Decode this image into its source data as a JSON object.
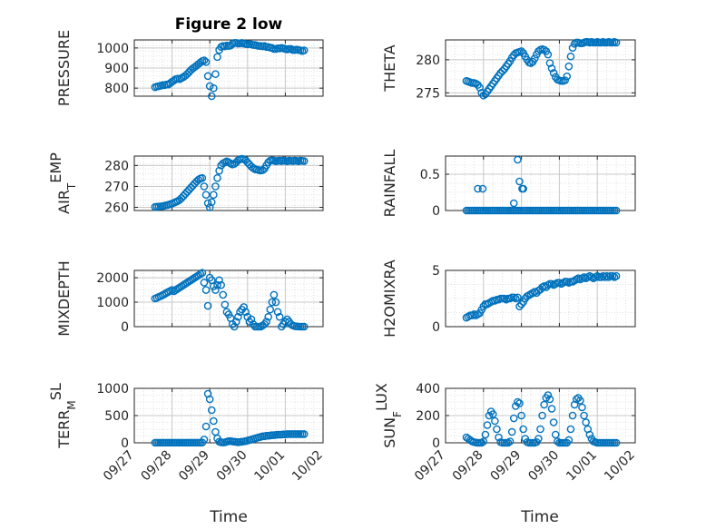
{
  "figure": {
    "title": "Figure 2 low",
    "xlabel": "Time"
  },
  "x_ticks": [
    "09/27",
    "09/28",
    "09/29",
    "09/30",
    "10/01",
    "10/02"
  ],
  "x_range_days": [
    0,
    5
  ],
  "marker_color": "#0072BD",
  "chart_data": [
    {
      "type": "scatter",
      "ylabel": "PRESSURE",
      "ylim": [
        760,
        1040
      ],
      "yticks": [
        800,
        900,
        1000
      ],
      "grid": true,
      "x": [
        0.55,
        0.6,
        0.65,
        0.7,
        0.75,
        0.8,
        0.85,
        0.9,
        0.95,
        1.0,
        1.05,
        1.1,
        1.15,
        1.2,
        1.25,
        1.3,
        1.35,
        1.4,
        1.45,
        1.5,
        1.55,
        1.6,
        1.65,
        1.7,
        1.75,
        1.8,
        1.85,
        1.9,
        1.95,
        2.0,
        2.05,
        2.1,
        2.15,
        2.2,
        2.25,
        2.3,
        2.35,
        2.4,
        2.45,
        2.5,
        2.55,
        2.6,
        2.65,
        2.7,
        2.75,
        2.8,
        2.85,
        2.9,
        2.95,
        3.0,
        3.05,
        3.1,
        3.15,
        3.2,
        3.25,
        3.3,
        3.35,
        3.4,
        3.45,
        3.5,
        3.55,
        3.6,
        3.65,
        3.7,
        3.75,
        3.8,
        3.85,
        3.9,
        3.95,
        4.0,
        4.05,
        4.1,
        4.15,
        4.2,
        4.25,
        4.3,
        4.35,
        4.4,
        4.45,
        4.5
      ],
      "y": [
        805,
        808,
        810,
        812,
        815,
        815,
        818,
        818,
        825,
        832,
        838,
        845,
        847,
        845,
        850,
        855,
        862,
        870,
        880,
        890,
        898,
        905,
        912,
        920,
        928,
        935,
        938,
        930,
        860,
        810,
        760,
        800,
        870,
        955,
        990,
        1005,
        1010,
        1008,
        1012,
        1010,
        1012,
        1020,
        1025,
        1025,
        1022,
        1023,
        1025,
        1022,
        1020,
        1018,
        1020,
        1018,
        1015,
        1015,
        1012,
        1010,
        1010,
        1008,
        1010,
        1005,
        1005,
        1002,
        1000,
        995,
        995,
        998,
        998,
        1000,
        998,
        995,
        993,
        995,
        995,
        990,
        990,
        992,
        990,
        988,
        985,
        988
      ]
    },
    {
      "type": "scatter",
      "ylabel": "THETA",
      "ylim": [
        274.5,
        283
      ],
      "yticks": [
        275,
        280
      ],
      "grid": true,
      "x": [
        0.55,
        0.6,
        0.65,
        0.7,
        0.75,
        0.8,
        0.85,
        0.9,
        0.95,
        1.0,
        1.05,
        1.1,
        1.15,
        1.2,
        1.25,
        1.3,
        1.35,
        1.4,
        1.45,
        1.5,
        1.55,
        1.6,
        1.65,
        1.7,
        1.75,
        1.8,
        1.85,
        1.9,
        1.95,
        2.0,
        2.05,
        2.1,
        2.15,
        2.2,
        2.25,
        2.3,
        2.35,
        2.4,
        2.45,
        2.5,
        2.55,
        2.6,
        2.65,
        2.7,
        2.75,
        2.8,
        2.85,
        2.9,
        2.95,
        3.0,
        3.05,
        3.1,
        3.15,
        3.2,
        3.25,
        3.3,
        3.35,
        3.4,
        3.45,
        3.5,
        3.55,
        3.6,
        3.65,
        3.7,
        3.75,
        3.8,
        3.85,
        3.9,
        3.95,
        4.0,
        4.05,
        4.1,
        4.15,
        4.2,
        4.25,
        4.3,
        4.35,
        4.4,
        4.45,
        4.5
      ],
      "y": [
        276.8,
        276.7,
        276.6,
        276.5,
        276.5,
        276.4,
        276.2,
        275.8,
        275.0,
        274.6,
        274.8,
        275.2,
        275.6,
        276.0,
        276.4,
        276.8,
        277.2,
        277.6,
        278.0,
        278.3,
        278.6,
        279.0,
        279.4,
        279.8,
        280.3,
        280.7,
        281.0,
        281.1,
        281.2,
        281.3,
        281.0,
        280.5,
        280.0,
        279.6,
        279.5,
        279.7,
        280.2,
        280.8,
        281.3,
        281.5,
        281.6,
        281.5,
        281.3,
        280.8,
        279.5,
        278.7,
        278.0,
        277.4,
        277.0,
        276.9,
        276.8,
        276.8,
        276.9,
        277.5,
        279.0,
        280.5,
        281.8,
        282.4,
        282.6,
        282.6,
        282.5,
        282.5,
        282.6,
        282.7,
        282.7,
        282.6,
        282.7,
        282.6,
        282.6,
        282.7,
        282.6,
        282.6,
        282.7,
        282.6,
        282.6,
        282.7,
        282.6,
        282.6,
        282.7,
        282.6
      ]
    },
    {
      "type": "scatter",
      "ylabel": "AIR_TEMP",
      "ylabel_main": "AIR",
      "ylabel_sub": "T",
      "ylabel_rest": "EMP",
      "ylim": [
        258.5,
        284.5
      ],
      "yticks": [
        260,
        270,
        280
      ],
      "grid": true,
      "x": [
        0.55,
        0.6,
        0.65,
        0.7,
        0.75,
        0.8,
        0.85,
        0.9,
        0.95,
        1.0,
        1.05,
        1.1,
        1.15,
        1.2,
        1.25,
        1.3,
        1.35,
        1.4,
        1.45,
        1.5,
        1.55,
        1.6,
        1.65,
        1.7,
        1.75,
        1.8,
        1.85,
        1.9,
        1.95,
        2.0,
        2.05,
        2.1,
        2.15,
        2.2,
        2.25,
        2.3,
        2.35,
        2.4,
        2.45,
        2.5,
        2.55,
        2.6,
        2.65,
        2.7,
        2.75,
        2.8,
        2.85,
        2.9,
        2.95,
        3.0,
        3.05,
        3.1,
        3.15,
        3.2,
        3.25,
        3.3,
        3.35,
        3.4,
        3.45,
        3.5,
        3.55,
        3.6,
        3.65,
        3.7,
        3.75,
        3.8,
        3.85,
        3.9,
        3.95,
        4.0,
        4.05,
        4.1,
        4.15,
        4.2,
        4.25,
        4.3,
        4.35,
        4.4,
        4.45,
        4.5
      ],
      "y": [
        260.2,
        260.3,
        260.4,
        260.5,
        260.6,
        260.8,
        261.0,
        261.2,
        261.5,
        261.8,
        262.2,
        262.6,
        263.0,
        263.6,
        264.4,
        265.4,
        266.4,
        267.4,
        268.4,
        269.4,
        270.4,
        271.4,
        272.4,
        273.2,
        273.8,
        274.0,
        270.0,
        266.0,
        262.0,
        260.0,
        262.5,
        266.0,
        270.0,
        274.0,
        277.5,
        280.0,
        281.0,
        281.5,
        282.0,
        281.5,
        281.0,
        280.5,
        280.8,
        281.5,
        282.5,
        283.0,
        283.2,
        283.0,
        282.5,
        281.5,
        280.5,
        279.5,
        278.8,
        278.2,
        278.0,
        277.8,
        277.6,
        277.8,
        278.5,
        280.0,
        281.5,
        282.3,
        282.5,
        282.3,
        282.0,
        282.2,
        282.3,
        282.1,
        282.4,
        282.2,
        282.0,
        282.3,
        282.2,
        282.1,
        282.3,
        282.2,
        282.0,
        282.3,
        282.2,
        282.1
      ]
    },
    {
      "type": "scatter",
      "ylabel": "RAINFALL",
      "ylim": [
        0,
        0.75
      ],
      "yticks": [
        0,
        0.5
      ],
      "grid": true,
      "x": [
        0.55,
        0.6,
        0.65,
        0.7,
        0.75,
        0.8,
        0.85,
        0.9,
        0.95,
        1.0,
        1.05,
        1.1,
        1.15,
        1.2,
        1.25,
        1.3,
        1.35,
        1.4,
        1.45,
        1.5,
        1.55,
        1.6,
        1.65,
        1.7,
        1.75,
        1.8,
        1.85,
        1.9,
        1.95,
        2.0,
        2.05,
        2.1,
        2.15,
        2.2,
        2.25,
        2.3,
        2.35,
        2.4,
        2.45,
        2.5,
        2.55,
        2.6,
        2.65,
        2.7,
        2.75,
        2.8,
        2.85,
        2.9,
        2.95,
        3.0,
        3.05,
        3.1,
        3.15,
        3.2,
        3.25,
        3.3,
        3.35,
        3.4,
        3.45,
        3.5,
        3.55,
        3.6,
        3.65,
        3.7,
        3.75,
        3.8,
        3.85,
        3.9,
        3.95,
        4.0,
        4.05,
        4.1,
        4.15,
        4.2,
        4.25,
        4.3,
        4.35,
        4.4,
        4.45,
        4.5,
        0.85,
        0.98,
        1.8,
        1.9,
        1.95,
        2.02,
        2.05
      ],
      "y": [
        0,
        0,
        0,
        0,
        0,
        0,
        0,
        0,
        0,
        0,
        0,
        0,
        0,
        0,
        0,
        0,
        0,
        0,
        0,
        0,
        0,
        0,
        0,
        0,
        0,
        0,
        0,
        0,
        0,
        0,
        0,
        0,
        0,
        0,
        0,
        0,
        0,
        0,
        0,
        0,
        0,
        0,
        0,
        0,
        0,
        0,
        0,
        0,
        0,
        0,
        0,
        0,
        0,
        0,
        0,
        0,
        0,
        0,
        0,
        0,
        0,
        0,
        0,
        0,
        0,
        0,
        0,
        0,
        0,
        0,
        0,
        0,
        0,
        0,
        0,
        0,
        0,
        0,
        0,
        0,
        0.3,
        0.3,
        0.1,
        0.7,
        0.4,
        0.3,
        0.3
      ]
    },
    {
      "type": "scatter",
      "ylabel": "MIXDEPTH",
      "ylim": [
        0,
        2300
      ],
      "yticks": [
        0,
        1000,
        2000
      ],
      "grid": true,
      "x": [
        0.55,
        0.6,
        0.65,
        0.7,
        0.75,
        0.8,
        0.85,
        0.9,
        0.95,
        1.0,
        1.05,
        1.1,
        1.15,
        1.2,
        1.25,
        1.3,
        1.35,
        1.4,
        1.45,
        1.5,
        1.55,
        1.6,
        1.65,
        1.7,
        1.75,
        1.8,
        1.85,
        1.9,
        1.95,
        2.0,
        2.05,
        2.1,
        2.15,
        2.2,
        2.25,
        2.3,
        2.35,
        2.4,
        2.45,
        2.5,
        2.55,
        2.6,
        2.65,
        2.7,
        2.75,
        2.8,
        2.85,
        2.9,
        2.95,
        3.0,
        3.05,
        3.1,
        3.15,
        3.2,
        3.25,
        3.3,
        3.35,
        3.4,
        3.45,
        3.5,
        3.55,
        3.6,
        3.65,
        3.7,
        3.75,
        3.8,
        3.85,
        3.9,
        3.95,
        4.0,
        4.05,
        4.1,
        4.15,
        4.2,
        4.25,
        4.3,
        4.35,
        4.4,
        4.45,
        4.5
      ],
      "y": [
        1150,
        1180,
        1220,
        1250,
        1290,
        1330,
        1380,
        1420,
        1460,
        1500,
        1450,
        1500,
        1550,
        1600,
        1650,
        1700,
        1750,
        1800,
        1850,
        1900,
        1950,
        2000,
        2050,
        2100,
        2150,
        2200,
        1800,
        1500,
        850,
        2000,
        1900,
        1650,
        1500,
        1700,
        1900,
        1700,
        1300,
        900,
        600,
        500,
        350,
        100,
        0,
        200,
        400,
        600,
        700,
        800,
        600,
        400,
        200,
        300,
        100,
        0,
        0,
        0,
        0,
        50,
        100,
        200,
        400,
        700,
        1000,
        1300,
        1000,
        600,
        400,
        0,
        100,
        200,
        300,
        200,
        100,
        50,
        20,
        10,
        5,
        0,
        0,
        0
      ]
    },
    {
      "type": "scatter",
      "ylabel": "H2OMIXRA",
      "ylim": [
        0,
        5
      ],
      "yticks": [
        0,
        5
      ],
      "grid": true,
      "x": [
        0.55,
        0.6,
        0.65,
        0.7,
        0.75,
        0.8,
        0.85,
        0.9,
        0.95,
        1.0,
        1.05,
        1.1,
        1.15,
        1.2,
        1.25,
        1.3,
        1.35,
        1.4,
        1.45,
        1.5,
        1.55,
        1.6,
        1.65,
        1.7,
        1.75,
        1.8,
        1.85,
        1.9,
        1.95,
        2.0,
        2.05,
        2.1,
        2.15,
        2.2,
        2.25,
        2.3,
        2.35,
        2.4,
        2.45,
        2.5,
        2.55,
        2.6,
        2.65,
        2.7,
        2.75,
        2.8,
        2.85,
        2.9,
        2.95,
        3.0,
        3.05,
        3.1,
        3.15,
        3.2,
        3.25,
        3.3,
        3.35,
        3.4,
        3.45,
        3.5,
        3.55,
        3.6,
        3.65,
        3.7,
        3.75,
        3.8,
        3.85,
        3.9,
        3.95,
        4.0,
        4.05,
        4.1,
        4.15,
        4.2,
        4.25,
        4.3,
        4.35,
        4.4,
        4.45,
        4.5
      ],
      "y": [
        0.8,
        0.9,
        1.0,
        1.0,
        1.1,
        1.0,
        1.1,
        1.2,
        1.5,
        1.8,
        2.0,
        2.0,
        2.1,
        2.2,
        2.3,
        2.3,
        2.4,
        2.4,
        2.5,
        2.5,
        2.5,
        2.4,
        2.5,
        2.5,
        2.6,
        2.6,
        2.5,
        2.6,
        1.8,
        2.0,
        2.2,
        2.5,
        2.7,
        2.8,
        2.9,
        3.0,
        3.1,
        3.0,
        3.2,
        3.3,
        3.5,
        3.6,
        3.5,
        3.7,
        3.8,
        3.8,
        3.7,
        3.8,
        3.9,
        3.9,
        3.8,
        3.9,
        4.0,
        4.0,
        3.9,
        4.0,
        4.0,
        4.1,
        4.2,
        4.3,
        4.2,
        4.3,
        4.4,
        4.3,
        4.4,
        4.5,
        4.4,
        4.3,
        4.4,
        4.5,
        4.4,
        4.4,
        4.5,
        4.4,
        4.5,
        4.4,
        4.5,
        4.5,
        4.4,
        4.5
      ]
    },
    {
      "type": "scatter",
      "ylabel": "TERR_MSL",
      "ylabel_main": "TERR",
      "ylabel_sub": "M",
      "ylabel_rest": "SL",
      "ylim": [
        0,
        1000
      ],
      "yticks": [
        0,
        500,
        1000
      ],
      "grid": true,
      "x": [
        0.55,
        0.6,
        0.65,
        0.7,
        0.75,
        0.8,
        0.85,
        0.9,
        0.95,
        1.0,
        1.05,
        1.1,
        1.15,
        1.2,
        1.25,
        1.3,
        1.35,
        1.4,
        1.45,
        1.5,
        1.55,
        1.6,
        1.65,
        1.7,
        1.75,
        1.8,
        1.85,
        1.9,
        1.95,
        2.0,
        2.05,
        2.1,
        2.15,
        2.2,
        2.25,
        2.3,
        2.35,
        2.4,
        2.45,
        2.5,
        2.55,
        2.6,
        2.65,
        2.7,
        2.75,
        2.8,
        2.85,
        2.9,
        2.95,
        3.0,
        3.05,
        3.1,
        3.15,
        3.2,
        3.25,
        3.3,
        3.35,
        3.4,
        3.45,
        3.5,
        3.55,
        3.6,
        3.65,
        3.7,
        3.75,
        3.8,
        3.85,
        3.9,
        3.95,
        4.0,
        4.05,
        4.1,
        4.15,
        4.2,
        4.25,
        4.3,
        4.35,
        4.4,
        4.45,
        4.5
      ],
      "y": [
        2,
        2,
        2,
        2,
        2,
        2,
        2,
        2,
        2,
        2,
        2,
        2,
        2,
        2,
        2,
        2,
        2,
        2,
        2,
        2,
        2,
        2,
        2,
        2,
        2,
        5,
        60,
        300,
        900,
        800,
        600,
        400,
        200,
        80,
        20,
        10,
        5,
        10,
        20,
        30,
        30,
        25,
        20,
        15,
        10,
        15,
        20,
        25,
        30,
        40,
        50,
        60,
        70,
        80,
        90,
        100,
        110,
        120,
        120,
        130,
        130,
        135,
        140,
        140,
        145,
        150,
        150,
        150,
        155,
        155,
        160,
        160,
        160,
        160,
        160,
        160,
        160,
        160,
        160,
        160
      ]
    },
    {
      "type": "scatter",
      "ylabel": "SUN_FLUX",
      "ylabel_main": "SUN",
      "ylabel_sub": "F",
      "ylabel_rest": "LUX",
      "ylim": [
        0,
        400
      ],
      "yticks": [
        0,
        200,
        400
      ],
      "grid": true,
      "x": [
        0.55,
        0.6,
        0.65,
        0.7,
        0.75,
        0.8,
        0.85,
        0.9,
        0.95,
        1.0,
        1.05,
        1.1,
        1.15,
        1.2,
        1.25,
        1.3,
        1.35,
        1.4,
        1.45,
        1.5,
        1.55,
        1.6,
        1.65,
        1.7,
        1.75,
        1.8,
        1.85,
        1.9,
        1.95,
        2.0,
        2.05,
        2.1,
        2.15,
        2.2,
        2.25,
        2.3,
        2.35,
        2.4,
        2.45,
        2.5,
        2.55,
        2.6,
        2.65,
        2.7,
        2.75,
        2.8,
        2.85,
        2.9,
        2.95,
        3.0,
        3.05,
        3.1,
        3.15,
        3.2,
        3.25,
        3.3,
        3.35,
        3.4,
        3.45,
        3.5,
        3.55,
        3.6,
        3.65,
        3.7,
        3.75,
        3.8,
        3.85,
        3.9,
        3.95,
        4.0,
        4.05,
        4.1,
        4.15,
        4.2,
        4.25,
        4.3,
        4.35,
        4.4,
        4.45,
        4.5
      ],
      "y": [
        40,
        30,
        20,
        10,
        5,
        2,
        0,
        0,
        0,
        10,
        60,
        130,
        200,
        230,
        210,
        160,
        100,
        40,
        5,
        0,
        0,
        0,
        0,
        10,
        80,
        180,
        270,
        300,
        290,
        200,
        100,
        30,
        5,
        0,
        0,
        0,
        0,
        5,
        30,
        100,
        200,
        280,
        330,
        350,
        320,
        250,
        150,
        60,
        10,
        0,
        0,
        0,
        0,
        0,
        20,
        100,
        200,
        280,
        320,
        330,
        310,
        260,
        200,
        150,
        100,
        60,
        30,
        10,
        5,
        0,
        0,
        0,
        0,
        0,
        0,
        0,
        0,
        0,
        0,
        0
      ]
    }
  ]
}
